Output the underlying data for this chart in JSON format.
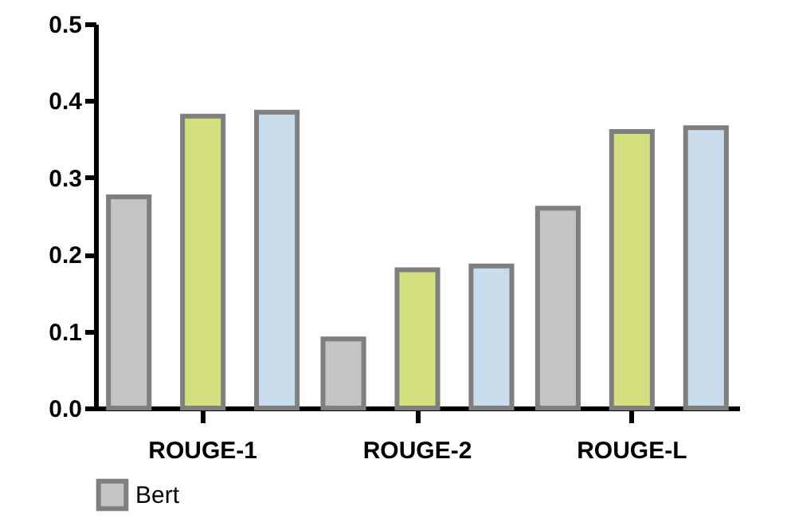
{
  "chart_data": {
    "type": "bar",
    "categories": [
      "ROUGE-1",
      "ROUGE-2",
      "ROUGE-L"
    ],
    "series": [
      {
        "name": "Bert",
        "color": "#c4c4c4",
        "values": [
          0.275,
          0.09,
          0.26
        ]
      },
      {
        "color": "#d4df7e",
        "values": [
          0.38,
          0.18,
          0.36
        ]
      },
      {
        "color": "#c8dcec",
        "values": [
          0.385,
          0.185,
          0.365
        ]
      }
    ],
    "ylim": [
      0,
      0.5
    ],
    "yticks": [
      {
        "value": 0,
        "label": "0.0"
      },
      {
        "value": 0.1,
        "label": "0.1"
      },
      {
        "value": 0.2,
        "label": "0.2"
      },
      {
        "value": 0.3,
        "label": "0.3"
      },
      {
        "value": 0.4,
        "label": "0.4"
      },
      {
        "value": 0.5,
        "label": "0.5"
      }
    ],
    "legend": "bottom"
  }
}
